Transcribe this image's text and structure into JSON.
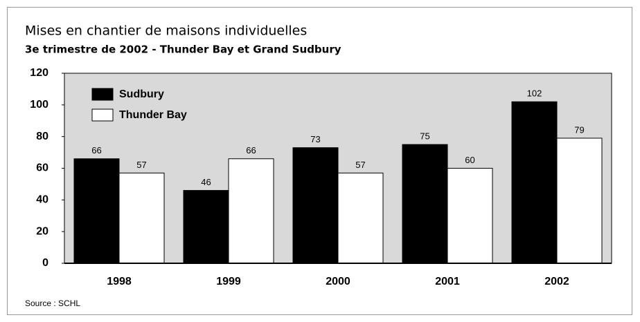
{
  "chart_data": {
    "type": "bar",
    "title": "Mises en chantier de maisons individuelles",
    "subtitle": "3e trimestre de 2002 - Thunder Bay et Grand Sudbury",
    "source": "Source : SCHL",
    "categories": [
      "1998",
      "1999",
      "2000",
      "2001",
      "2002"
    ],
    "series": [
      {
        "name": "Sudbury",
        "color": "#000000",
        "values": [
          66,
          46,
          73,
          75,
          102
        ]
      },
      {
        "name": "Thunder Bay",
        "color": "#ffffff",
        "values": [
          57,
          66,
          57,
          60,
          79
        ]
      }
    ],
    "ylim": [
      0,
      120
    ],
    "yticks": [
      0,
      20,
      40,
      60,
      80,
      100,
      120
    ],
    "plot_background": "#d9d9d9",
    "legend": "upper left",
    "data_labels": true
  }
}
